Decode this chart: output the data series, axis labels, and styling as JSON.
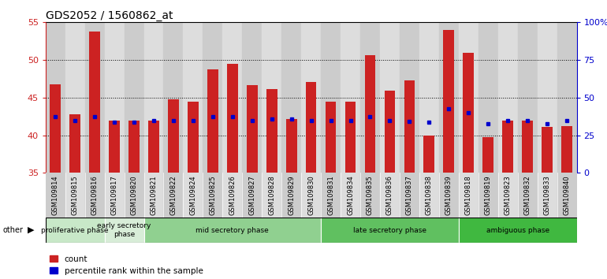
{
  "title": "GDS2052 / 1560862_at",
  "samples": [
    "GSM109814",
    "GSM109815",
    "GSM109816",
    "GSM109817",
    "GSM109820",
    "GSM109821",
    "GSM109822",
    "GSM109824",
    "GSM109825",
    "GSM109826",
    "GSM109827",
    "GSM109828",
    "GSM109829",
    "GSM109830",
    "GSM109831",
    "GSM109834",
    "GSM109835",
    "GSM109836",
    "GSM109837",
    "GSM109838",
    "GSM109839",
    "GSM109818",
    "GSM109819",
    "GSM109823",
    "GSM109832",
    "GSM109833",
    "GSM109840"
  ],
  "count_values": [
    46.8,
    42.8,
    53.8,
    42.0,
    42.0,
    42.0,
    44.8,
    44.5,
    48.8,
    49.5,
    46.7,
    46.1,
    42.2,
    47.1,
    44.5,
    44.5,
    50.6,
    45.9,
    47.3,
    40.0,
    54.0,
    51.0,
    39.8,
    42.0,
    42.0,
    41.1,
    41.2
  ],
  "percentile_values": [
    42.5,
    42.0,
    42.5,
    41.7,
    41.7,
    42.0,
    42.0,
    42.0,
    42.5,
    42.5,
    42.0,
    42.2,
    42.2,
    42.0,
    42.0,
    42.0,
    42.5,
    42.0,
    41.8,
    41.7,
    43.5,
    43.0,
    41.5,
    42.0,
    42.0,
    41.5,
    42.0
  ],
  "phases": [
    {
      "label": "proliferative phase",
      "start": 0,
      "end": 3,
      "color": "#c8e8c8"
    },
    {
      "label": "early secretory\nphase",
      "start": 3,
      "end": 5,
      "color": "#d8edd8"
    },
    {
      "label": "mid secretory phase",
      "start": 5,
      "end": 14,
      "color": "#90d090"
    },
    {
      "label": "late secretory phase",
      "start": 14,
      "end": 21,
      "color": "#60c060"
    },
    {
      "label": "ambiguous phase",
      "start": 21,
      "end": 27,
      "color": "#40b840"
    }
  ],
  "ylim_left": [
    35,
    55
  ],
  "ylim_right": [
    0,
    100
  ],
  "yticks_left": [
    35,
    40,
    45,
    50,
    55
  ],
  "yticks_right": [
    0,
    25,
    50,
    75,
    100
  ],
  "bar_color": "#cc2222",
  "percentile_color": "#0000cc",
  "bar_width": 0.55,
  "baseline": 35,
  "background_color": "#ffffff",
  "title_fontsize": 10,
  "axis_color_left": "#cc2222",
  "axis_color_right": "#0000cc",
  "tick_bg_odd": "#cccccc",
  "tick_bg_even": "#dddddd",
  "other_label": "other"
}
